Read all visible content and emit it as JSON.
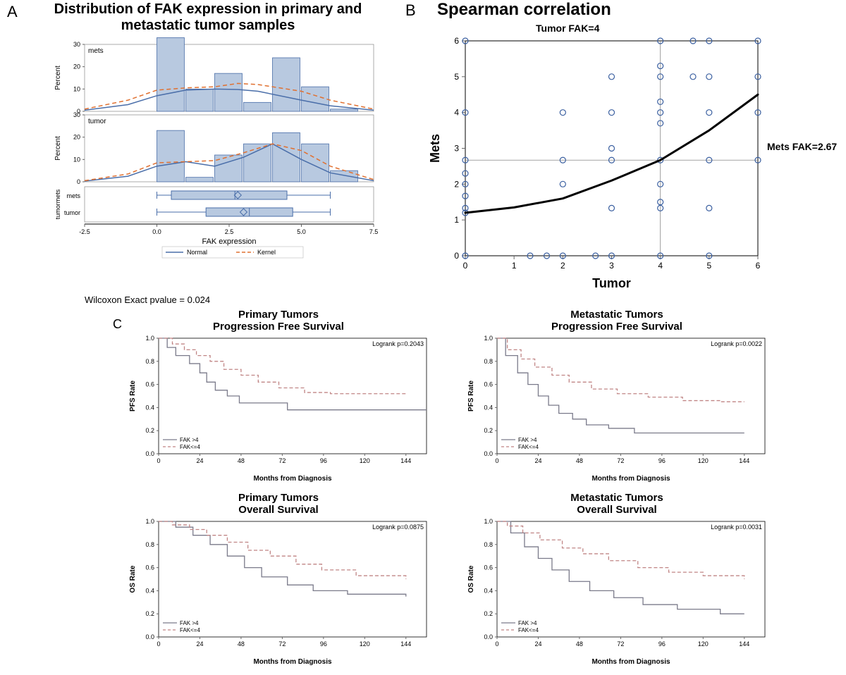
{
  "panelA": {
    "label": "A",
    "title": "Distribution of FAK expression in primary and metastatic tumor samples",
    "title_fontsize": 20,
    "xlabel": "FAK expression",
    "legend": {
      "items": [
        "Normal",
        "Kernel"
      ],
      "colors": [
        "#4a6ea9",
        "#e07030"
      ],
      "styles": [
        "solid",
        "dashed"
      ]
    },
    "footnote": "Wilcoxon Exact pvalue = 0.024",
    "xlim": [
      -2.5,
      7.5
    ],
    "xtick_step": 2.5,
    "histograms": {
      "mets": {
        "label": "mets",
        "ylabel": "Percent",
        "ylim": [
          0,
          30
        ],
        "ytick_step": 10,
        "bins": [
          0,
          1,
          2,
          3,
          4,
          5,
          6
        ],
        "heights": [
          33,
          10,
          17,
          4,
          24,
          11,
          1
        ],
        "bar_color": "#b8c9e0",
        "bar_border": "#4a6ea9",
        "normal_curve": [
          [
            -2.5,
            0.5
          ],
          [
            -1,
            3
          ],
          [
            0,
            7
          ],
          [
            1,
            9.5
          ],
          [
            2,
            10
          ],
          [
            2.8,
            9.8
          ],
          [
            3.5,
            9
          ],
          [
            5,
            5
          ],
          [
            6,
            2.5
          ],
          [
            7.5,
            0.5
          ]
        ],
        "kernel_curve": [
          [
            -2.5,
            1
          ],
          [
            -1,
            5
          ],
          [
            0,
            9.5
          ],
          [
            1,
            10.5
          ],
          [
            2,
            11
          ],
          [
            2.8,
            12.5
          ],
          [
            3.5,
            12
          ],
          [
            5,
            9
          ],
          [
            6,
            5
          ],
          [
            7.5,
            1
          ]
        ],
        "normal_color": "#4a6ea9",
        "kernel_color": "#e07030"
      },
      "tumor": {
        "label": "tumor",
        "ylabel": "Percent",
        "ylim": [
          0,
          30
        ],
        "ytick_step": 10,
        "bins": [
          0,
          1,
          2,
          3,
          4,
          5,
          6
        ],
        "heights": [
          23,
          2,
          12,
          17,
          22,
          17,
          5
        ],
        "bar_color": "#b8c9e0",
        "bar_border": "#4a6ea9",
        "normal_curve": [
          [
            -2.5,
            0.3
          ],
          [
            -1,
            2.5
          ],
          [
            0,
            7
          ],
          [
            1,
            9
          ],
          [
            2,
            7
          ],
          [
            3,
            11
          ],
          [
            4,
            17
          ],
          [
            5,
            10
          ],
          [
            6,
            4
          ],
          [
            7.5,
            0.5
          ]
        ],
        "kernel_curve": [
          [
            -2.5,
            0.5
          ],
          [
            -1,
            3.5
          ],
          [
            0,
            8.5
          ],
          [
            1,
            9
          ],
          [
            2,
            9.5
          ],
          [
            3,
            13
          ],
          [
            4,
            17
          ],
          [
            5,
            14
          ],
          [
            6,
            7
          ],
          [
            7.5,
            1
          ]
        ],
        "normal_color": "#4a6ea9",
        "kernel_color": "#e07030"
      }
    },
    "boxplot": {
      "ylabel": "tumormets",
      "categories": [
        "mets",
        "tumor"
      ],
      "boxes": [
        {
          "whisker_lo": 0,
          "q1": 0.5,
          "median": 2.7,
          "q3": 4.5,
          "whisker_hi": 6,
          "mean": 2.8
        },
        {
          "whisker_lo": 0,
          "q1": 1.7,
          "median": 3.2,
          "q3": 4.7,
          "whisker_hi": 6,
          "mean": 3.0
        }
      ],
      "box_color": "#b8c9e0",
      "border_color": "#4a6ea9"
    }
  },
  "panelB": {
    "label": "B",
    "title": "Spearman correlation",
    "title_fontsize": 24,
    "subtitle": "Tumor FAK=4",
    "side_label": "Mets FAK=2.67",
    "xlabel": "Tumor",
    "ylabel": "Mets",
    "xlim": [
      0,
      6
    ],
    "ylim": [
      0,
      6
    ],
    "vline": 4,
    "hline": 2.67,
    "marker_color": "#3a5fa0",
    "marker_fill": "none",
    "marker_r": 4,
    "line_color": "#000000",
    "line_width": 3,
    "points": [
      [
        0,
        6
      ],
      [
        0,
        4
      ],
      [
        0,
        2.67
      ],
      [
        0,
        2.3
      ],
      [
        0,
        2
      ],
      [
        0,
        1.67
      ],
      [
        0,
        1.33
      ],
      [
        0,
        1.2
      ],
      [
        0,
        0
      ],
      [
        1.33,
        0
      ],
      [
        1.67,
        0
      ],
      [
        2,
        4
      ],
      [
        2,
        2.67
      ],
      [
        2,
        2
      ],
      [
        2,
        0
      ],
      [
        2.67,
        0
      ],
      [
        3,
        5
      ],
      [
        3,
        4
      ],
      [
        3,
        3
      ],
      [
        3,
        2.67
      ],
      [
        3,
        1.33
      ],
      [
        3,
        0
      ],
      [
        4,
        6
      ],
      [
        4,
        5.3
      ],
      [
        4,
        5
      ],
      [
        4,
        4.3
      ],
      [
        4,
        4
      ],
      [
        4,
        3.7
      ],
      [
        4,
        2.67
      ],
      [
        4,
        2
      ],
      [
        4,
        1.5
      ],
      [
        4,
        1.33
      ],
      [
        4,
        0
      ],
      [
        4.67,
        6
      ],
      [
        4.67,
        5
      ],
      [
        5,
        6
      ],
      [
        5,
        5
      ],
      [
        5,
        4
      ],
      [
        5,
        2.67
      ],
      [
        5,
        1.33
      ],
      [
        5,
        0
      ],
      [
        6,
        6
      ],
      [
        6,
        5
      ],
      [
        6,
        4
      ],
      [
        6,
        2.67
      ]
    ],
    "trend": [
      [
        0,
        1.2
      ],
      [
        1,
        1.35
      ],
      [
        2,
        1.6
      ],
      [
        3,
        2.1
      ],
      [
        4,
        2.67
      ],
      [
        5,
        3.5
      ],
      [
        6,
        4.5
      ]
    ]
  },
  "panelC": {
    "label": "C",
    "charts": [
      {
        "title1": "Primary Tumors",
        "title2": "Progression Free Survival",
        "ylabel": "PFS Rate",
        "xlabel": "Months from Diagnosis",
        "logrank": "Logrank p=0.2043",
        "xlim": [
          0,
          156
        ],
        "xtick_step": 24,
        "ylim": [
          0,
          1
        ],
        "ytick_step": 0.2,
        "legend": [
          "FAK >4",
          "FAK<=4"
        ],
        "line1_color": "#7a7a8a",
        "line2_color": "#c08585",
        "line1_style": "solid",
        "line2_style": "dashed",
        "line1": [
          [
            0,
            1
          ],
          [
            5,
            0.92
          ],
          [
            10,
            0.85
          ],
          [
            18,
            0.78
          ],
          [
            24,
            0.7
          ],
          [
            28,
            0.62
          ],
          [
            33,
            0.55
          ],
          [
            40,
            0.5
          ],
          [
            47,
            0.44
          ],
          [
            60,
            0.44
          ],
          [
            75,
            0.38
          ],
          [
            156,
            0.38
          ]
        ],
        "line2": [
          [
            0,
            1
          ],
          [
            8,
            0.95
          ],
          [
            15,
            0.9
          ],
          [
            22,
            0.85
          ],
          [
            30,
            0.8
          ],
          [
            38,
            0.73
          ],
          [
            48,
            0.68
          ],
          [
            58,
            0.62
          ],
          [
            70,
            0.57
          ],
          [
            85,
            0.53
          ],
          [
            100,
            0.52
          ],
          [
            120,
            0.52
          ],
          [
            144,
            0.52
          ]
        ]
      },
      {
        "title1": "Metastatic Tumors",
        "title2": "Progression Free Survival",
        "ylabel": "PFS Rate",
        "xlabel": "Months from Diagnosis",
        "logrank": "Logrank p=0.0022",
        "xlim": [
          0,
          156
        ],
        "xtick_step": 24,
        "ylim": [
          0,
          1
        ],
        "ytick_step": 0.2,
        "legend": [
          "FAK >4",
          "FAK<=4"
        ],
        "line1_color": "#7a7a8a",
        "line2_color": "#c08585",
        "line1_style": "solid",
        "line2_style": "dashed",
        "line1": [
          [
            0,
            1
          ],
          [
            5,
            0.85
          ],
          [
            12,
            0.7
          ],
          [
            18,
            0.6
          ],
          [
            24,
            0.5
          ],
          [
            30,
            0.42
          ],
          [
            36,
            0.35
          ],
          [
            44,
            0.3
          ],
          [
            52,
            0.25
          ],
          [
            65,
            0.22
          ],
          [
            80,
            0.18
          ],
          [
            120,
            0.18
          ],
          [
            144,
            0.18
          ]
        ],
        "line2": [
          [
            0,
            1
          ],
          [
            6,
            0.9
          ],
          [
            14,
            0.82
          ],
          [
            22,
            0.75
          ],
          [
            32,
            0.68
          ],
          [
            42,
            0.62
          ],
          [
            55,
            0.56
          ],
          [
            70,
            0.52
          ],
          [
            88,
            0.49
          ],
          [
            108,
            0.46
          ],
          [
            130,
            0.45
          ],
          [
            144,
            0.45
          ]
        ]
      },
      {
        "title1": "Primary Tumors",
        "title2": "Overall Survival",
        "ylabel": "OS Rate",
        "xlabel": "Months from Diagnosis",
        "logrank": "Logrank p=0.0875",
        "xlim": [
          0,
          156
        ],
        "xtick_step": 24,
        "ylim": [
          0,
          1
        ],
        "ytick_step": 0.2,
        "legend": [
          "FAK >4",
          "FAK<=4"
        ],
        "line1_color": "#7a7a8a",
        "line2_color": "#c08585",
        "line1_style": "solid",
        "line2_style": "dashed",
        "line1": [
          [
            0,
            1
          ],
          [
            10,
            0.95
          ],
          [
            20,
            0.88
          ],
          [
            30,
            0.8
          ],
          [
            40,
            0.7
          ],
          [
            50,
            0.6
          ],
          [
            60,
            0.52
          ],
          [
            75,
            0.45
          ],
          [
            90,
            0.4
          ],
          [
            110,
            0.37
          ],
          [
            144,
            0.35
          ]
        ],
        "line2": [
          [
            0,
            1
          ],
          [
            8,
            0.97
          ],
          [
            18,
            0.93
          ],
          [
            28,
            0.88
          ],
          [
            40,
            0.82
          ],
          [
            52,
            0.75
          ],
          [
            65,
            0.7
          ],
          [
            80,
            0.63
          ],
          [
            95,
            0.58
          ],
          [
            115,
            0.53
          ],
          [
            144,
            0.5
          ]
        ]
      },
      {
        "title1": "Metastatic Tumors",
        "title2": "Overall Survival",
        "ylabel": "OS Rate",
        "xlabel": "Months from Diagnosis",
        "logrank": "Logrank p=0.0031",
        "xlim": [
          0,
          156
        ],
        "xtick_step": 24,
        "ylim": [
          0,
          1
        ],
        "ytick_step": 0.2,
        "legend": [
          "FAK >4",
          "FAK<=4"
        ],
        "line1_color": "#7a7a8a",
        "line2_color": "#c08585",
        "line1_style": "solid",
        "line2_style": "dashed",
        "line1": [
          [
            0,
            1
          ],
          [
            8,
            0.9
          ],
          [
            16,
            0.78
          ],
          [
            24,
            0.68
          ],
          [
            32,
            0.58
          ],
          [
            42,
            0.48
          ],
          [
            54,
            0.4
          ],
          [
            68,
            0.34
          ],
          [
            85,
            0.28
          ],
          [
            105,
            0.24
          ],
          [
            130,
            0.2
          ],
          [
            144,
            0.2
          ]
        ],
        "line2": [
          [
            0,
            1
          ],
          [
            6,
            0.96
          ],
          [
            15,
            0.9
          ],
          [
            25,
            0.84
          ],
          [
            38,
            0.77
          ],
          [
            50,
            0.72
          ],
          [
            65,
            0.66
          ],
          [
            82,
            0.6
          ],
          [
            100,
            0.56
          ],
          [
            120,
            0.53
          ],
          [
            144,
            0.5
          ]
        ]
      }
    ]
  }
}
